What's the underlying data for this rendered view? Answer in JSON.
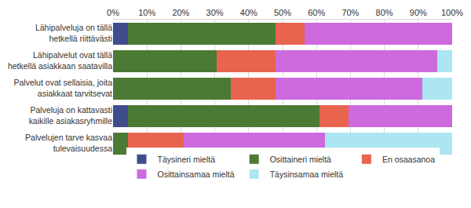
{
  "chart_data": {
    "type": "bar",
    "orientation": "horizontal",
    "stacked": true,
    "grid": true,
    "legend": "bottom",
    "categories": [
      "Lähipalveluja on tällä hetkellä riittävästi",
      "Lähipalvelut ovat tällä hetkellä asiakkaan saatavilla",
      "Palvelut ovat sellaisia, joita asiakkaat tarvitsevat",
      "Palveluja on kattavasti kaikille asiakasryhmille",
      "Palvelujen tarve kasvaa tulevaisuudessa"
    ],
    "series": [
      {
        "name": "Täysineri mieltä",
        "color": "#3f4d8c",
        "values": [
          4.5,
          0,
          0,
          4.3,
          0
        ]
      },
      {
        "name": "Osittaineri mieltä",
        "color": "#4b7a35",
        "values": [
          43.5,
          30.5,
          34.8,
          56.5,
          4.3
        ]
      },
      {
        "name": "En osaasanoa",
        "color": "#e8644e",
        "values": [
          8.5,
          17.4,
          13.0,
          8.7,
          16.5
        ]
      },
      {
        "name": "Osittainsamaa mieltä",
        "color": "#cc6ade",
        "values": [
          43.5,
          47.8,
          43.5,
          30.5,
          41.7
        ]
      },
      {
        "name": "Täysinsamaa mieltä",
        "color": "#ace6f2",
        "values": [
          0,
          4.3,
          8.7,
          0,
          37.5
        ]
      }
    ],
    "xlim": [
      0,
      100
    ],
    "xticks": [
      {
        "value": 0,
        "label": "0%"
      },
      {
        "value": 10,
        "label": "10%"
      },
      {
        "value": 20,
        "label": "20%"
      },
      {
        "value": 30,
        "label": "30%"
      },
      {
        "value": 40,
        "label": "40%"
      },
      {
        "value": 50,
        "label": "50%"
      },
      {
        "value": 60,
        "label": "60%"
      },
      {
        "value": 70,
        "label": "70%"
      },
      {
        "value": 80,
        "label": "80%"
      },
      {
        "value": 90,
        "label": "90%"
      },
      {
        "value": 100,
        "label": "100%"
      }
    ]
  }
}
